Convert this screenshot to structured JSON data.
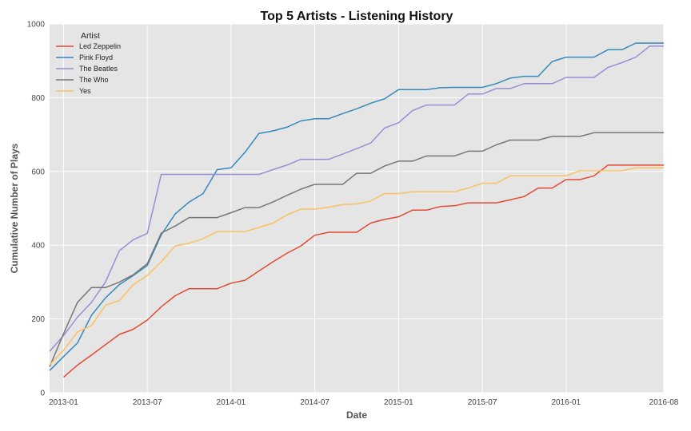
{
  "chart_data": {
    "type": "line",
    "title": "Top 5 Artists - Listening History",
    "xlabel": "Date",
    "ylabel": "Cumulative Number of Plays",
    "ylim": [
      0,
      1000
    ],
    "yticks": [
      0,
      200,
      400,
      600,
      800,
      1000
    ],
    "xlim": [
      "2012-12-01",
      "2016-08-01"
    ],
    "xticks": [
      "2013-01",
      "2013-07",
      "2014-01",
      "2014-07",
      "2015-01",
      "2015-07",
      "2016-01",
      "2016-08"
    ],
    "grid": true,
    "legend": {
      "title": "Artist",
      "placement": "top-left"
    },
    "series": [
      {
        "name": "Led Zeppelin",
        "color": "#E24A33",
        "x": [
          "2013-01",
          "2013-02",
          "2013-03",
          "2013-04",
          "2013-05",
          "2013-06",
          "2013-07",
          "2013-08",
          "2013-09",
          "2013-10",
          "2013-11",
          "2013-12",
          "2014-01",
          "2014-02",
          "2014-03",
          "2014-04",
          "2014-05",
          "2014-06",
          "2014-07",
          "2014-08",
          "2014-09",
          "2014-10",
          "2014-11",
          "2014-12",
          "2015-01",
          "2015-02",
          "2015-03",
          "2015-04",
          "2015-05",
          "2015-06",
          "2015-07",
          "2015-08",
          "2015-09",
          "2015-10",
          "2015-11",
          "2015-12",
          "2016-01",
          "2016-02",
          "2016-03",
          "2016-04",
          "2016-05",
          "2016-06",
          "2016-07",
          "2016-08"
        ],
        "y": [
          42,
          75,
          102,
          130,
          158,
          172,
          197,
          233,
          263,
          282,
          282,
          282,
          297,
          305,
          330,
          355,
          378,
          398,
          427,
          435,
          435,
          435,
          460,
          470,
          477,
          495,
          495,
          505,
          507,
          515,
          515,
          515,
          523,
          532,
          555,
          555,
          578,
          578,
          588,
          617,
          617,
          617,
          617,
          617
        ]
      },
      {
        "name": "Pink Floyd",
        "color": "#348ABD",
        "x": [
          "2012-12",
          "2013-01",
          "2013-02",
          "2013-03",
          "2013-04",
          "2013-05",
          "2013-06",
          "2013-07",
          "2013-08",
          "2013-09",
          "2013-10",
          "2013-11",
          "2013-12",
          "2014-01",
          "2014-02",
          "2014-03",
          "2014-04",
          "2014-05",
          "2014-06",
          "2014-07",
          "2014-08",
          "2014-09",
          "2014-10",
          "2014-11",
          "2014-12",
          "2015-01",
          "2015-02",
          "2015-03",
          "2015-04",
          "2015-05",
          "2015-06",
          "2015-07",
          "2015-08",
          "2015-09",
          "2015-10",
          "2015-11",
          "2015-12",
          "2016-01",
          "2016-02",
          "2016-03",
          "2016-04",
          "2016-05",
          "2016-06",
          "2016-07",
          "2016-08"
        ],
        "y": [
          60,
          98,
          135,
          210,
          257,
          293,
          318,
          345,
          428,
          485,
          517,
          540,
          605,
          610,
          652,
          703,
          710,
          720,
          737,
          743,
          743,
          757,
          770,
          785,
          797,
          822,
          822,
          822,
          827,
          828,
          828,
          828,
          838,
          853,
          858,
          858,
          898,
          910,
          910,
          910,
          930,
          930,
          948,
          948,
          948
        ]
      },
      {
        "name": "The Beatles",
        "color": "#988ED5",
        "x": [
          "2012-12",
          "2013-01",
          "2013-02",
          "2013-03",
          "2013-04",
          "2013-05",
          "2013-06",
          "2013-07",
          "2013-08",
          "2013-09",
          "2013-10",
          "2013-11",
          "2013-12",
          "2014-01",
          "2014-02",
          "2014-03",
          "2014-04",
          "2014-05",
          "2014-06",
          "2014-07",
          "2014-08",
          "2014-09",
          "2014-10",
          "2014-11",
          "2014-12",
          "2015-01",
          "2015-02",
          "2015-03",
          "2015-04",
          "2015-05",
          "2015-06",
          "2015-07",
          "2015-08",
          "2015-09",
          "2015-10",
          "2015-11",
          "2015-12",
          "2016-01",
          "2016-02",
          "2016-03",
          "2016-04",
          "2016-05",
          "2016-06",
          "2016-07",
          "2016-08"
        ],
        "y": [
          112,
          155,
          205,
          245,
          300,
          385,
          415,
          432,
          592,
          592,
          592,
          592,
          592,
          592,
          592,
          592,
          605,
          617,
          633,
          633,
          633,
          647,
          662,
          677,
          718,
          732,
          765,
          780,
          780,
          780,
          810,
          810,
          825,
          825,
          838,
          838,
          838,
          855,
          855,
          855,
          882,
          895,
          910,
          940,
          940
        ]
      },
      {
        "name": "The Who",
        "color": "#777777",
        "x": [
          "2012-12",
          "2013-01",
          "2013-02",
          "2013-03",
          "2013-04",
          "2013-05",
          "2013-06",
          "2013-07",
          "2013-08",
          "2013-09",
          "2013-10",
          "2013-11",
          "2013-12",
          "2014-01",
          "2014-02",
          "2014-03",
          "2014-04",
          "2014-05",
          "2014-06",
          "2014-07",
          "2014-08",
          "2014-09",
          "2014-10",
          "2014-11",
          "2014-12",
          "2015-01",
          "2015-02",
          "2015-03",
          "2015-04",
          "2015-05",
          "2015-06",
          "2015-07",
          "2015-08",
          "2015-09",
          "2015-10",
          "2015-11",
          "2015-12",
          "2016-01",
          "2016-02",
          "2016-03",
          "2016-04",
          "2016-05",
          "2016-06",
          "2016-07",
          "2016-08"
        ],
        "y": [
          70,
          160,
          245,
          285,
          285,
          300,
          320,
          350,
          433,
          452,
          475,
          475,
          475,
          488,
          502,
          502,
          517,
          535,
          552,
          565,
          565,
          565,
          595,
          595,
          615,
          628,
          628,
          642,
          642,
          642,
          655,
          655,
          672,
          685,
          685,
          685,
          695,
          695,
          695,
          705,
          705,
          705,
          705,
          705,
          705
        ]
      },
      {
        "name": "Yes",
        "color": "#FBC15E",
        "x": [
          "2012-12",
          "2013-01",
          "2013-02",
          "2013-03",
          "2013-04",
          "2013-05",
          "2013-06",
          "2013-07",
          "2013-08",
          "2013-09",
          "2013-10",
          "2013-11",
          "2013-12",
          "2014-01",
          "2014-02",
          "2014-03",
          "2014-04",
          "2014-05",
          "2014-06",
          "2014-07",
          "2014-08",
          "2014-09",
          "2014-10",
          "2014-11",
          "2014-12",
          "2015-01",
          "2015-02",
          "2015-03",
          "2015-04",
          "2015-05",
          "2015-06",
          "2015-07",
          "2015-08",
          "2015-09",
          "2015-10",
          "2015-11",
          "2015-12",
          "2016-01",
          "2016-02",
          "2016-03",
          "2016-04",
          "2016-05",
          "2016-06",
          "2016-07",
          "2016-08"
        ],
        "y": [
          75,
          115,
          165,
          182,
          237,
          250,
          293,
          318,
          355,
          398,
          405,
          418,
          437,
          437,
          437,
          448,
          460,
          482,
          498,
          498,
          503,
          510,
          512,
          520,
          540,
          540,
          545,
          545,
          545,
          545,
          555,
          568,
          568,
          588,
          588,
          588,
          588,
          588,
          602,
          602,
          602,
          602,
          610,
          610,
          610
        ]
      }
    ]
  }
}
